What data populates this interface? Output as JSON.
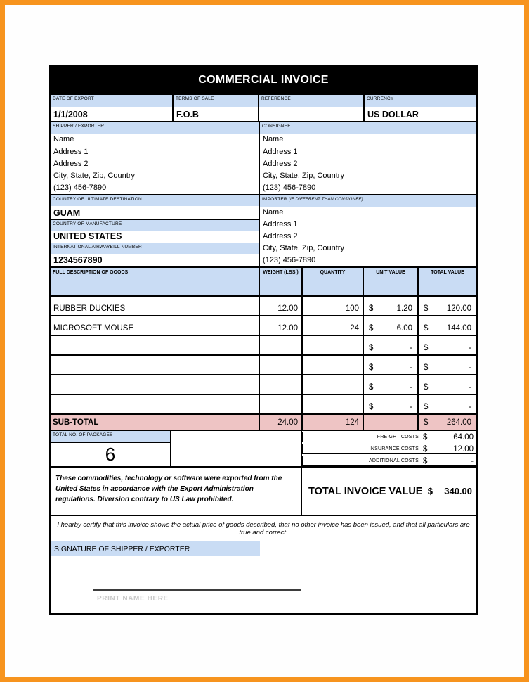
{
  "page": {
    "title": "COMMERCIAL INVOICE"
  },
  "colors": {
    "frame_orange": "#f7941e",
    "label_blue": "#c9dcf4",
    "subtotal_pink": "#eec4c4",
    "header_black": "#000000"
  },
  "fields": {
    "date_of_export": {
      "label": "DATE OF EXPORT",
      "value": "1/1/2008"
    },
    "terms_of_sale": {
      "label": "TERMS OF SALE",
      "value": "F.O.B"
    },
    "reference": {
      "label": "REFERENCE",
      "value": ""
    },
    "currency": {
      "label": "CURRENCY",
      "value": "US DOLLAR"
    }
  },
  "shipper": {
    "label": "SHIPPER / EXPORTER",
    "lines": [
      "Name",
      "Address 1",
      "Address 2",
      "City, State, Zip, Country",
      "(123) 456-7890"
    ]
  },
  "consignee": {
    "label": "CONSIGNEE",
    "lines": [
      "Name",
      "Address 1",
      "Address 2",
      "City, State, Zip, Country",
      "(123) 456-7890"
    ]
  },
  "destination": {
    "label": "COUNTRY OF ULTIMATE DESTINATION",
    "value": "GUAM"
  },
  "manufacture": {
    "label": "COUNTRY OF MANUFACTURE",
    "value": "UNITED STATES"
  },
  "airwaybill": {
    "label": "INTERNATIONAL AIRWAYBILL NUMBER",
    "value": "1234567890"
  },
  "importer": {
    "label": "IMPORTER",
    "label_note": "(IF DIFFERENT THAN CONSIGNEE)",
    "lines": [
      "Name",
      "Address 1",
      "Address 2",
      "City, State, Zip, Country",
      "(123) 456-7890"
    ]
  },
  "goods": {
    "headers": {
      "description": "FULL DESCRIPTION OF GOODS",
      "weight": "WEIGHT (LBS.)",
      "quantity": "QUANTITY",
      "unit_value": "UNIT VALUE",
      "total_value": "TOTAL VALUE"
    },
    "rows": [
      {
        "description": "RUBBER DUCKIES",
        "weight": "12.00",
        "quantity": "100",
        "unit_cur": "$",
        "unit_value": "1.20",
        "total_cur": "$",
        "total_value": "120.00"
      },
      {
        "description": "MICROSOFT MOUSE",
        "weight": "12.00",
        "quantity": "24",
        "unit_cur": "$",
        "unit_value": "6.00",
        "total_cur": "$",
        "total_value": "144.00"
      },
      {
        "description": "",
        "weight": "",
        "quantity": "",
        "unit_cur": "$",
        "unit_value": "-",
        "total_cur": "$",
        "total_value": "-"
      },
      {
        "description": "",
        "weight": "",
        "quantity": "",
        "unit_cur": "$",
        "unit_value": "-",
        "total_cur": "$",
        "total_value": "-"
      },
      {
        "description": "",
        "weight": "",
        "quantity": "",
        "unit_cur": "$",
        "unit_value": "-",
        "total_cur": "$",
        "total_value": "-"
      },
      {
        "description": "",
        "weight": "",
        "quantity": "",
        "unit_cur": "$",
        "unit_value": "-",
        "total_cur": "$",
        "total_value": "-"
      }
    ],
    "subtotal": {
      "label": "SUB-TOTAL",
      "weight": "24.00",
      "quantity": "124",
      "total_cur": "$",
      "total_value": "264.00"
    }
  },
  "packages": {
    "label": "TOTAL NO. OF PACKAGES",
    "value": "6"
  },
  "costs": [
    {
      "label": "FREIGHT COSTS",
      "cur": "$",
      "value": "64.00"
    },
    {
      "label": "INSURANCE COSTS",
      "cur": "$",
      "value": "12.00"
    },
    {
      "label": "ADDITIONAL COSTS",
      "cur": "$",
      "value": "-"
    }
  ],
  "export_statement": "These commodities, technology or software were exported from the United States in accordance with the Export Administration regulations.  Diversion contrary to US Law prohibited.",
  "total_invoice": {
    "label": "TOTAL INVOICE VALUE",
    "cur": "$",
    "value": "340.00"
  },
  "certification": "I hearby certify that this invoice shows the actual price of goods described, that no other invoice has been issued, and that all particulars are true and correct.",
  "signature": {
    "label": "SIGNATURE OF SHIPPER / EXPORTER",
    "print_name": "PRINT NAME HERE"
  }
}
